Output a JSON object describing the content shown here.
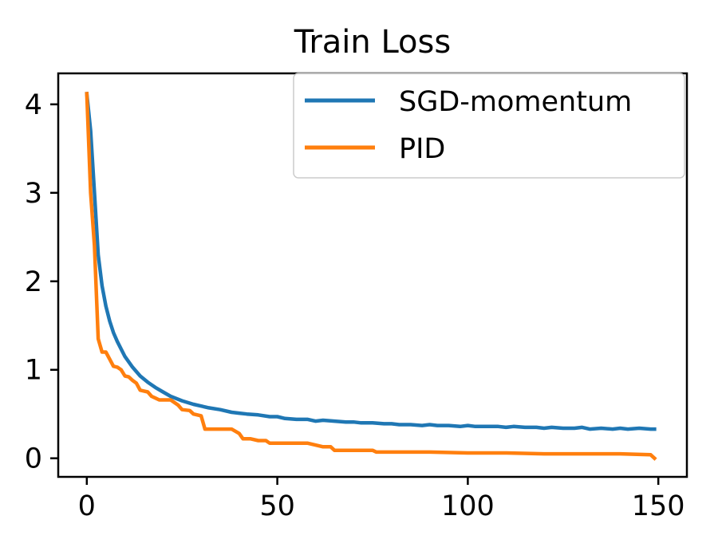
{
  "chart_data": {
    "type": "line",
    "title": "Train Loss",
    "xlabel": "",
    "ylabel": "",
    "xlim": [
      -7.5,
      157.5
    ],
    "ylim": [
      -0.21,
      4.35
    ],
    "xticks": [
      0,
      50,
      100,
      150
    ],
    "yticks": [
      0,
      1,
      2,
      3,
      4
    ],
    "xtick_labels": [
      "0",
      "50",
      "100",
      "150"
    ],
    "ytick_labels": [
      "0",
      "1",
      "2",
      "3",
      "4"
    ],
    "grid": false,
    "legend_position": "top-right",
    "series": [
      {
        "name": "SGD-momentum",
        "color": "#1f77b4",
        "x": [
          0,
          1,
          2,
          3,
          4,
          5,
          6,
          7,
          8,
          10,
          12,
          14,
          16,
          18,
          20,
          22,
          25,
          28,
          30,
          32,
          35,
          38,
          40,
          42,
          45,
          48,
          50,
          52,
          55,
          58,
          60,
          62,
          65,
          68,
          70,
          72,
          75,
          78,
          80,
          82,
          85,
          88,
          90,
          92,
          95,
          98,
          100,
          102,
          105,
          108,
          110,
          112,
          115,
          118,
          120,
          122,
          125,
          128,
          130,
          132,
          135,
          138,
          140,
          142,
          145,
          148,
          149
        ],
        "y": [
          4.12,
          3.7,
          3.0,
          2.3,
          1.95,
          1.72,
          1.55,
          1.42,
          1.32,
          1.15,
          1.03,
          0.93,
          0.86,
          0.8,
          0.75,
          0.7,
          0.65,
          0.61,
          0.59,
          0.57,
          0.55,
          0.52,
          0.51,
          0.5,
          0.49,
          0.47,
          0.47,
          0.45,
          0.44,
          0.44,
          0.42,
          0.43,
          0.42,
          0.41,
          0.41,
          0.4,
          0.4,
          0.39,
          0.39,
          0.38,
          0.38,
          0.37,
          0.38,
          0.37,
          0.37,
          0.36,
          0.37,
          0.36,
          0.36,
          0.36,
          0.35,
          0.36,
          0.35,
          0.35,
          0.34,
          0.35,
          0.34,
          0.34,
          0.35,
          0.33,
          0.34,
          0.33,
          0.34,
          0.33,
          0.34,
          0.33,
          0.33
        ]
      },
      {
        "name": "PID",
        "color": "#ff7f0e",
        "x": [
          0,
          1,
          2,
          3,
          4,
          5,
          6,
          7,
          8,
          9,
          10,
          11,
          12,
          13,
          14,
          15,
          16,
          17,
          18,
          19,
          20,
          22,
          24,
          25,
          27,
          28,
          30,
          31,
          33,
          35,
          38,
          40,
          41,
          43,
          45,
          47,
          48,
          50,
          52,
          55,
          58,
          60,
          62,
          64,
          65,
          66,
          70,
          75,
          76,
          80,
          90,
          100,
          110,
          120,
          130,
          140,
          148,
          149
        ],
        "y": [
          4.12,
          3.0,
          2.4,
          1.35,
          1.2,
          1.2,
          1.12,
          1.04,
          1.03,
          1.0,
          0.93,
          0.92,
          0.88,
          0.85,
          0.77,
          0.76,
          0.75,
          0.7,
          0.68,
          0.66,
          0.66,
          0.66,
          0.6,
          0.55,
          0.54,
          0.5,
          0.48,
          0.33,
          0.33,
          0.33,
          0.33,
          0.28,
          0.22,
          0.22,
          0.2,
          0.2,
          0.17,
          0.17,
          0.17,
          0.17,
          0.17,
          0.15,
          0.13,
          0.13,
          0.09,
          0.09,
          0.09,
          0.09,
          0.07,
          0.07,
          0.07,
          0.06,
          0.06,
          0.05,
          0.05,
          0.05,
          0.04,
          0.0
        ]
      }
    ]
  }
}
